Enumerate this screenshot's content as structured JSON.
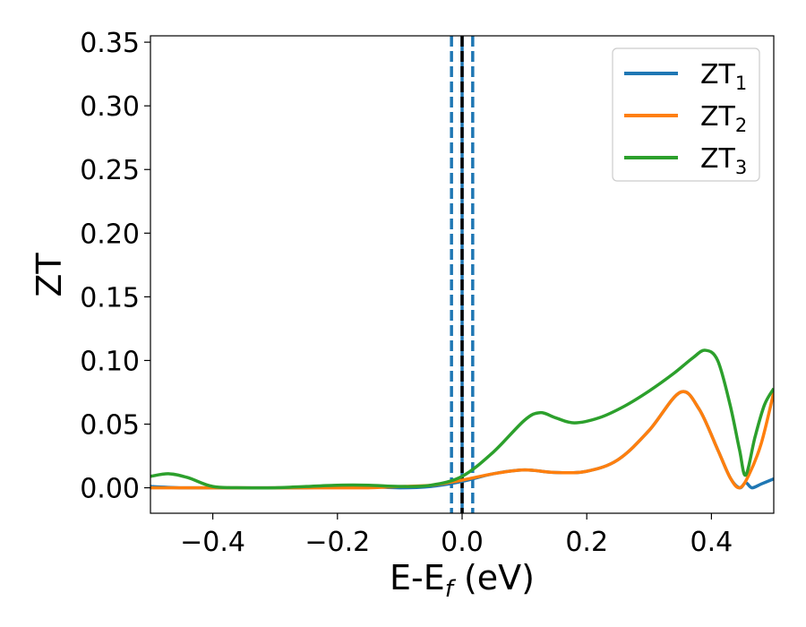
{
  "chart_data": {
    "type": "line",
    "title": "",
    "xlabel_main": "E-E",
    "xlabel_sub": "f",
    "xlabel_unit": " (eV)",
    "ylabel": "ZT",
    "xlim": [
      -0.5,
      0.5
    ],
    "ylim": [
      -0.02,
      0.355
    ],
    "xticks": [
      -0.4,
      -0.2,
      0.0,
      0.2,
      0.4
    ],
    "xtick_labels": [
      "−0.4",
      "−0.2",
      "0.0",
      "0.2",
      "0.4"
    ],
    "yticks": [
      0.0,
      0.05,
      0.1,
      0.15,
      0.2,
      0.25,
      0.3,
      0.35
    ],
    "ytick_labels": [
      "0.00",
      "0.05",
      "0.10",
      "0.15",
      "0.20",
      "0.25",
      "0.30",
      "0.35"
    ],
    "grid": false,
    "legend_position": "top-right",
    "vertical_lines": [
      {
        "x": -0.017,
        "style": "dashed",
        "color": "#1f77b4"
      },
      {
        "x": 0.0,
        "style": "solid",
        "color": "#1f77b4"
      },
      {
        "x": 0.017,
        "style": "dashed",
        "color": "#1f77b4"
      },
      {
        "x": 0.0,
        "style": "dashed",
        "color": "#000000"
      }
    ],
    "series": [
      {
        "name": "ZT",
        "sub": "1",
        "color": "#1f77b4",
        "x": [
          -0.5,
          -0.45,
          -0.4,
          -0.35,
          -0.3,
          -0.25,
          -0.2,
          -0.15,
          -0.1,
          -0.05,
          0.0,
          0.05,
          0.1,
          0.15,
          0.2,
          0.25,
          0.3,
          0.35,
          0.38,
          0.41,
          0.43,
          0.445,
          0.455,
          0.465,
          0.48,
          0.5
        ],
        "y": [
          0.001,
          0.0,
          0.0,
          0.0,
          0.0,
          0.0,
          0.001,
          0.001,
          0.0,
          0.001,
          0.005,
          0.011,
          0.014,
          0.012,
          0.013,
          0.022,
          0.045,
          0.075,
          0.062,
          0.03,
          0.008,
          0.0,
          0.004,
          0.0,
          0.003,
          0.007
        ]
      },
      {
        "name": "ZT",
        "sub": "2",
        "color": "#ff7f0e",
        "x": [
          -0.5,
          -0.45,
          -0.4,
          -0.35,
          -0.3,
          -0.25,
          -0.2,
          -0.15,
          -0.1,
          -0.05,
          0.0,
          0.05,
          0.1,
          0.15,
          0.2,
          0.25,
          0.3,
          0.35,
          0.38,
          0.41,
          0.43,
          0.445,
          0.46,
          0.48,
          0.5
        ],
        "y": [
          0.0,
          0.0,
          0.0,
          0.0,
          0.0,
          0.0,
          0.0,
          0.0,
          0.001,
          0.002,
          0.006,
          0.011,
          0.014,
          0.012,
          0.013,
          0.022,
          0.045,
          0.075,
          0.062,
          0.03,
          0.008,
          0.0,
          0.01,
          0.035,
          0.075
        ]
      },
      {
        "name": "ZT",
        "sub": "3",
        "color": "#2ca02c",
        "x": [
          -0.5,
          -0.47,
          -0.44,
          -0.4,
          -0.35,
          -0.3,
          -0.25,
          -0.2,
          -0.15,
          -0.1,
          -0.05,
          0.0,
          0.05,
          0.1,
          0.125,
          0.15,
          0.18,
          0.22,
          0.26,
          0.3,
          0.34,
          0.37,
          0.39,
          0.41,
          0.43,
          0.445,
          0.455,
          0.47,
          0.485,
          0.5
        ],
        "y": [
          0.009,
          0.011,
          0.008,
          0.001,
          0.0,
          0.0,
          0.001,
          0.002,
          0.002,
          0.001,
          0.002,
          0.009,
          0.028,
          0.053,
          0.059,
          0.055,
          0.051,
          0.055,
          0.064,
          0.076,
          0.09,
          0.102,
          0.108,
          0.1,
          0.065,
          0.03,
          0.01,
          0.04,
          0.065,
          0.078
        ]
      }
    ]
  }
}
